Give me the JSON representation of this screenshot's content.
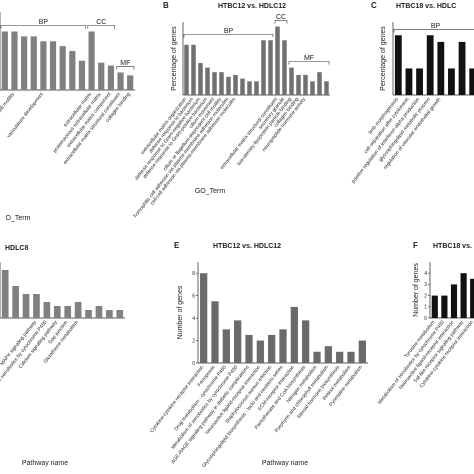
{
  "chart_data": [
    {
      "type": "bar",
      "title": null,
      "xlabel": "O_Term",
      "color": "#808080",
      "ylim": [
        0,
        8
      ],
      "groups": [
        "BP",
        "CC",
        "MF"
      ],
      "categories": [
        null,
        "regulation of cell motility",
        null,
        null,
        "vasculature development",
        null,
        null,
        null,
        null,
        "extracellular matrix",
        "proteinaceous extracellular matrix",
        "extracellular matrix component",
        "extracellular matrix structural constituent",
        "collagen binding"
      ],
      "values": [
        6,
        6,
        5.5,
        5.5,
        5,
        5,
        4.5,
        4,
        3,
        6,
        2.8,
        2.5,
        1.8,
        1.5
      ]
    },
    {
      "type": "bar",
      "letter": "B",
      "title": "HTBC12 vs. HDLC12",
      "ylabel": "Percentage of genes",
      "xlabel": "GO_Term",
      "color": "#707070",
      "ylim": [
        0,
        8
      ],
      "groups": [
        "BP",
        "CC",
        "MF"
      ],
      "categories": [
        "extracellular matrix organization",
        "defense response to bacterium",
        "defense response to Gram-negative bacterium",
        "defense response to Gram-positive bacterium",
        "cilium movement",
        "cilium or flagellum-dependent cell motility",
        "homophilic cell adhesion via plasma membrane adhesion molecules",
        "cell-cell adhesion via plasma-membrane adhesion molecules",
        null,
        null,
        null,
        null,
        null,
        "extracellular matrix structural constituent",
        "secretory granule",
        "low-density lipoprotein particle binding",
        "collagen binding",
        "neuropeptide hormone activity",
        null,
        null,
        null
      ],
      "values": [
        5.5,
        5.5,
        3.5,
        3,
        2.5,
        2.5,
        2,
        2.2,
        1.8,
        1.5,
        1.5,
        6,
        6,
        7.5,
        6,
        3,
        2.2,
        2.2,
        1.5,
        2.5,
        1.5
      ]
    },
    {
      "type": "bar",
      "letter": "C",
      "title": "HTBC18 vs. HDLC",
      "ylabel": "Percentage of genes",
      "color": "#111111",
      "ylim": [
        0,
        5.5
      ],
      "groups": [
        "BP"
      ],
      "categories": [
        "limb morphogenesis",
        "cell separation after cytokinesis",
        "positive regulation of interferon-alpha production",
        "glycosphingolipid metabolic process",
        "regulation of vascular endothelial growth",
        null,
        null,
        null
      ],
      "values": [
        4.5,
        2,
        2,
        4.5,
        4,
        2,
        4,
        2
      ]
    },
    {
      "type": "bar",
      "title": "HDLC8",
      "xlabel": "Pathway name",
      "color": "#808080",
      "ylim": [
        0,
        7
      ],
      "categories": [
        null,
        null,
        null,
        "MAPK signaling pathway",
        "Metabolism of xenobiotics by cytochrome P450",
        "Calcium signaling pathway",
        "Gap junction",
        "Glutathione metabolism",
        null,
        null,
        null,
        null
      ],
      "values": [
        6,
        4,
        3,
        3,
        2,
        1.5,
        1.5,
        2,
        1,
        1.5,
        1,
        1
      ]
    },
    {
      "type": "bar",
      "letter": "E",
      "title": "HTBC12 vs. HDLC12",
      "ylabel": "Number of genes",
      "xlabel": "Pathway name",
      "color": "#6a6a6a",
      "ylim": [
        0,
        9
      ],
      "yticks": [
        0,
        2,
        4,
        6,
        8
      ],
      "categories": [
        "Cytokine-cytokine receptor interaction",
        "Ferroptosis",
        "Drug metabolism - cytochrome P450",
        "Metabolism of xenobiotics by cytochrome P450",
        "AGE-RAGE signaling pathway in diabetic complications",
        "Neuroactive ligand-receptor interaction",
        "Staphylococcus aureus infection",
        "Glycosphingolipid biosynthesis - lacto and neolacto series",
        "ECM-receptor interaction",
        "Pantothenate and CoA biosynthesis",
        "Nitrogen metabolism",
        "Porphyrin and chlorophyll metabolism",
        "Steroid hormone biosynthesis",
        "Retinol metabolism",
        "Pyrimidine metabolism"
      ],
      "values": [
        8,
        5.5,
        3,
        3.8,
        2.5,
        2,
        2.5,
        3,
        5,
        3.8,
        1,
        1.5,
        1,
        1,
        2
      ]
    },
    {
      "type": "bar",
      "letter": "F",
      "title": "HTBC18 vs.",
      "ylabel": "Number of genes",
      "color": "#111111",
      "ylim": [
        0,
        5
      ],
      "yticks": [
        0,
        1,
        2,
        3,
        4
      ],
      "categories": [
        "Tyrosine metabolism",
        "Metabolism of xenobiotics by cytochrome P450",
        "Neuroactive ligand-receptor interaction",
        "Toll-like receptor signaling pathway",
        "Cytokine-cytokine receptor interaction"
      ],
      "values": [
        2,
        2,
        3,
        4,
        3.5
      ]
    }
  ]
}
